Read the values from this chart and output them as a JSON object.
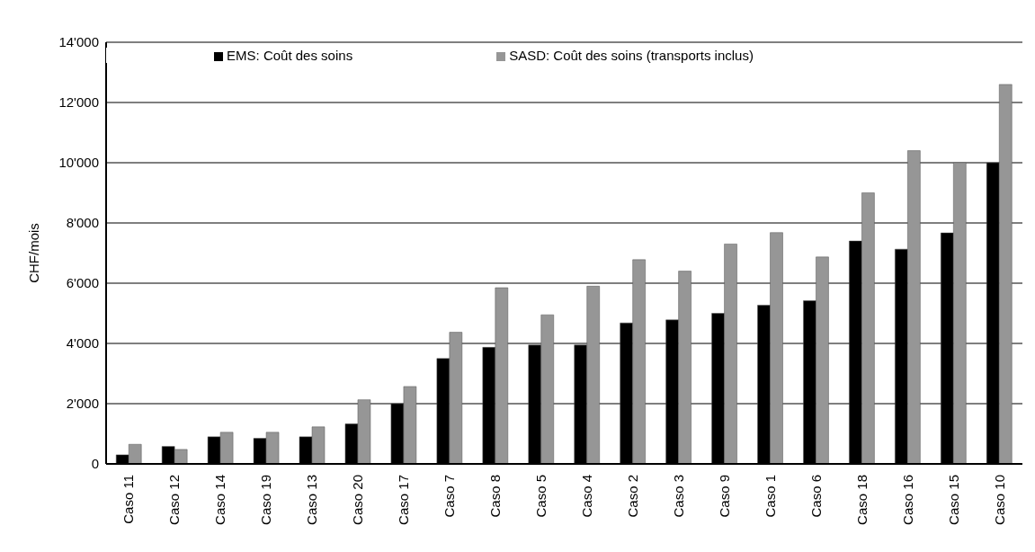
{
  "chart_data": {
    "type": "bar",
    "ylabel": "CHF/mois",
    "categories": [
      "Caso 11",
      "Caso 12",
      "Caso 14",
      "Caso 19",
      "Caso 13",
      "Caso 20",
      "Caso 17",
      "Caso 7",
      "Caso 8",
      "Caso 5",
      "Caso 4",
      "Caso 2",
      "Caso 3",
      "Caso 9",
      "Caso 1",
      "Caso 6",
      "Caso 18",
      "Caso 16",
      "Caso 15",
      "Caso 10"
    ],
    "series": [
      {
        "name": "EMS: Coût des soins",
        "color": "#000000",
        "values": [
          300,
          580,
          900,
          850,
          900,
          1330,
          2000,
          3500,
          3870,
          3950,
          3950,
          4680,
          4780,
          5000,
          5270,
          5420,
          7400,
          7130,
          7670,
          10000
        ]
      },
      {
        "name": "SASD: Coût des soins (transports inclus)",
        "color": "#969696",
        "values": [
          650,
          480,
          1050,
          1050,
          1230,
          2130,
          2570,
          4370,
          5850,
          4950,
          5900,
          6780,
          6400,
          7300,
          7680,
          6870,
          9000,
          10400,
          10000,
          12600
        ]
      }
    ],
    "ylim": [
      0,
      14000
    ],
    "yticks": [
      {
        "value": 0,
        "label": "0"
      },
      {
        "value": 2000,
        "label": "2'000"
      },
      {
        "value": 4000,
        "label": "4'000"
      },
      {
        "value": 6000,
        "label": "6'000"
      },
      {
        "value": 8000,
        "label": "8'000"
      },
      {
        "value": 10000,
        "label": "10'000"
      },
      {
        "value": 12000,
        "label": "12'000"
      },
      {
        "value": 14000,
        "label": "14'000"
      }
    ],
    "grid": "y",
    "legend": "top"
  }
}
